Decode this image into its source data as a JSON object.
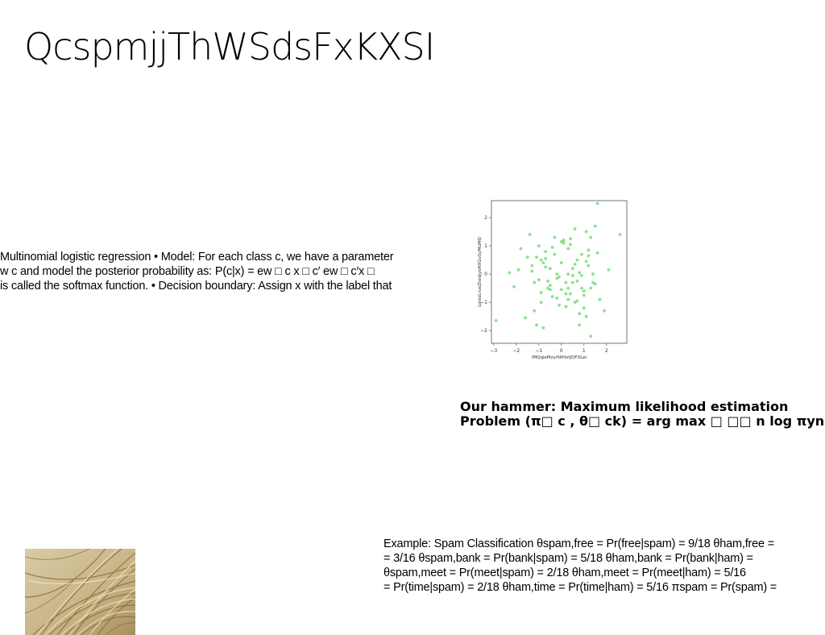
{
  "slide": {
    "title": "QcspmjjThWSdsFxKXSI",
    "body_lines": [
      "Multinomial logistic regression • Model: For each class c, we have a parameter",
      "w c and model the posterior probability as: P(c|x) = ew □ c x □ c′ ew □ c′x □",
      "is called the softmax function. • Decision boundary: Assign x with the label that"
    ],
    "mle_lines": [
      "Our hammer: Maximum likelihood estimation",
      "Problem (π□ c , θ□ ck) = arg max □ □□ n log πyn"
    ],
    "spam_lines": [
      "Example: Spam Classification θspam,free = Pr(free|spam) = 9/18 θham,free =",
      "= 3/16 θspam,bank = Pr(bank|spam) = 5/18 θham,bank = Pr(bank|ham) =",
      "θspam,meet = Pr(meet|spam) = 2/18 θham,meet = Pr(meet|ham) = 5/16",
      "= Pr(time|spam) = 2/18 θham,time = Pr(time|ham) = 5/16 πspam = Pr(spam) ="
    ]
  },
  "chart_data": {
    "type": "scatter",
    "xlabel": "lMQqieMzyrNIHotJQFXLei",
    "ylabel": "LotssLrueZtedjyoHXGvSyMuMQ",
    "xlim": [
      -3.1,
      2.9
    ],
    "ylim": [
      -2.45,
      2.6
    ],
    "xticks": [
      -3,
      -2,
      -1,
      0,
      1,
      2
    ],
    "yticks": [
      -2,
      -1,
      0,
      1,
      2
    ],
    "tick_labels_x": [
      "−3",
      "−2",
      "−1",
      "0",
      "1",
      "2"
    ],
    "tick_labels_y": [
      "−2",
      "−1",
      "0",
      "1",
      "2"
    ],
    "color": "#7be07b",
    "x": [
      1.6,
      2.6,
      -2.9,
      -2.3,
      -2.1,
      -1.9,
      -1.8,
      -1.6,
      -1.5,
      -1.4,
      -1.3,
      -1.2,
      -1.1,
      -1.0,
      -0.9,
      -0.8,
      -0.7,
      -0.6,
      -0.5,
      -0.4,
      -0.3,
      -0.2,
      -0.1,
      0.0,
      0.1,
      0.2,
      0.3,
      0.4,
      0.5,
      0.6,
      0.7,
      0.8,
      0.9,
      1.0,
      1.1,
      1.2,
      1.3,
      1.4,
      1.5,
      1.7,
      1.9,
      2.1,
      -1.1,
      -0.9,
      -0.7,
      -0.5,
      -0.3,
      -0.1,
      0.1,
      0.3,
      0.5,
      0.7,
      0.9,
      1.1,
      1.3,
      -0.6,
      -0.4,
      -0.2,
      0.2,
      0.4,
      0.6,
      0.8,
      1.0,
      1.2,
      -1.3,
      -0.8,
      0.0,
      0.5,
      1.0,
      1.5,
      -1.0,
      -0.5,
      0.3,
      0.8,
      1.3,
      -0.7,
      0.2,
      0.6,
      1.4,
      -0.2,
      1.2,
      0.9,
      -1.2,
      0.4,
      1.6,
      0.0,
      0.7,
      -0.9,
      1.1,
      0.3
    ],
    "y": [
      2.5,
      1.4,
      -1.65,
      0.05,
      -0.45,
      0.15,
      0.9,
      -1.55,
      0.6,
      1.4,
      0.3,
      -1.3,
      -1.8,
      -0.2,
      0.5,
      -1.9,
      0.8,
      -0.5,
      0.2,
      -0.8,
      1.3,
      0.0,
      -1.1,
      0.4,
      1.1,
      -0.3,
      0.9,
      -0.7,
      0.2,
      1.6,
      -0.95,
      -1.8,
      0.7,
      -0.6,
      1.5,
      0.3,
      -2.2,
      -0.3,
      1.7,
      -0.9,
      -1.3,
      0.15,
      0.6,
      -1.0,
      0.25,
      -0.4,
      0.7,
      -0.1,
      1.2,
      -0.9,
      -0.3,
      0.5,
      -0.5,
      -1.5,
      1.3,
      -0.25,
      0.95,
      -0.85,
      -1.15,
      1.05,
      -1.0,
      0.05,
      -0.75,
      0.65,
      0.1,
      0.4,
      -0.55,
      -0.05,
      -1.2,
      -0.35,
      1.0,
      -0.55,
      0.0,
      -1.4,
      -0.5,
      0.55,
      -0.7,
      0.35,
      0.0,
      -0.15,
      0.85,
      -0.05,
      -0.3,
      1.25,
      0.75,
      1.15,
      -0.25,
      -0.65,
      0.45,
      -0.5
    ]
  }
}
